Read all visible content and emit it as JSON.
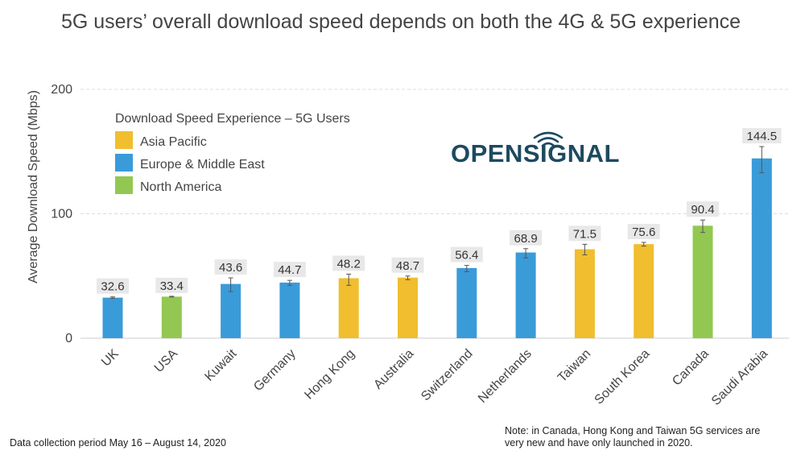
{
  "colors": {
    "asia_pacific": "#f0be2e",
    "europe_middle_east": "#3a9bd9",
    "north_america": "#92c851",
    "logo": "#1d4a5f",
    "gridline": "#dddddd",
    "value_label_bg": "#e8e8e8"
  },
  "logo": {
    "text": "OPENSIGNAL",
    "icon": "wifi-signal-icon"
  },
  "chart_data": {
    "type": "bar",
    "title": "5G users’ overall download speed depends on both the 4G & 5G experience",
    "ylabel": "Average Download Speed (Mbps)",
    "xlabel": "",
    "ylim": [
      0,
      200
    ],
    "yticks": [
      0,
      100,
      200
    ],
    "grid": true,
    "legend": {
      "title": "Download Speed Experience – 5G Users",
      "placement": "top-left",
      "entries": [
        {
          "name": "Asia Pacific",
          "group": "asia_pacific"
        },
        {
          "name": "Europe & Middle East",
          "group": "europe_middle_east"
        },
        {
          "name": "North America",
          "group": "north_america"
        }
      ]
    },
    "categories": [
      "UK",
      "USA",
      "Kuwait",
      "Germany",
      "Hong Kong",
      "Australia",
      "Switzerland",
      "Netherlands",
      "Taiwan",
      "South Korea",
      "Canada",
      "Saudi Arabia"
    ],
    "values": [
      32.6,
      33.4,
      43.6,
      44.7,
      48.2,
      48.7,
      56.4,
      68.9,
      71.5,
      75.6,
      90.4,
      144.5
    ],
    "value_labels": [
      "32.6",
      "33.4",
      "43.6",
      "44.7",
      "48.2",
      "48.7",
      "56.4",
      "68.9",
      "71.5",
      "75.6",
      "90.4",
      "144.5"
    ],
    "groups": [
      "europe_middle_east",
      "north_america",
      "europe_middle_east",
      "europe_middle_east",
      "asia_pacific",
      "asia_pacific",
      "europe_middle_east",
      "europe_middle_east",
      "asia_pacific",
      "asia_pacific",
      "north_america",
      "europe_middle_east"
    ],
    "error_ranges": [
      [
        32.0,
        33.2
      ],
      [
        33.1,
        33.7
      ],
      [
        37.5,
        48.5
      ],
      [
        42.5,
        46.5
      ],
      [
        42.5,
        51.5
      ],
      [
        47.0,
        50.0
      ],
      [
        53.5,
        58.5
      ],
      [
        64.5,
        72.0
      ],
      [
        67.0,
        75.5
      ],
      [
        74.0,
        77.0
      ],
      [
        85.0,
        95.0
      ],
      [
        133.0,
        154.0
      ]
    ]
  },
  "footer": {
    "collection_period": "Data collection period May 16 – August 14, 2020",
    "note_line1": "Note: in Canada, Hong Kong and Taiwan 5G services are",
    "note_line2": "very new and have only launched in 2020."
  }
}
